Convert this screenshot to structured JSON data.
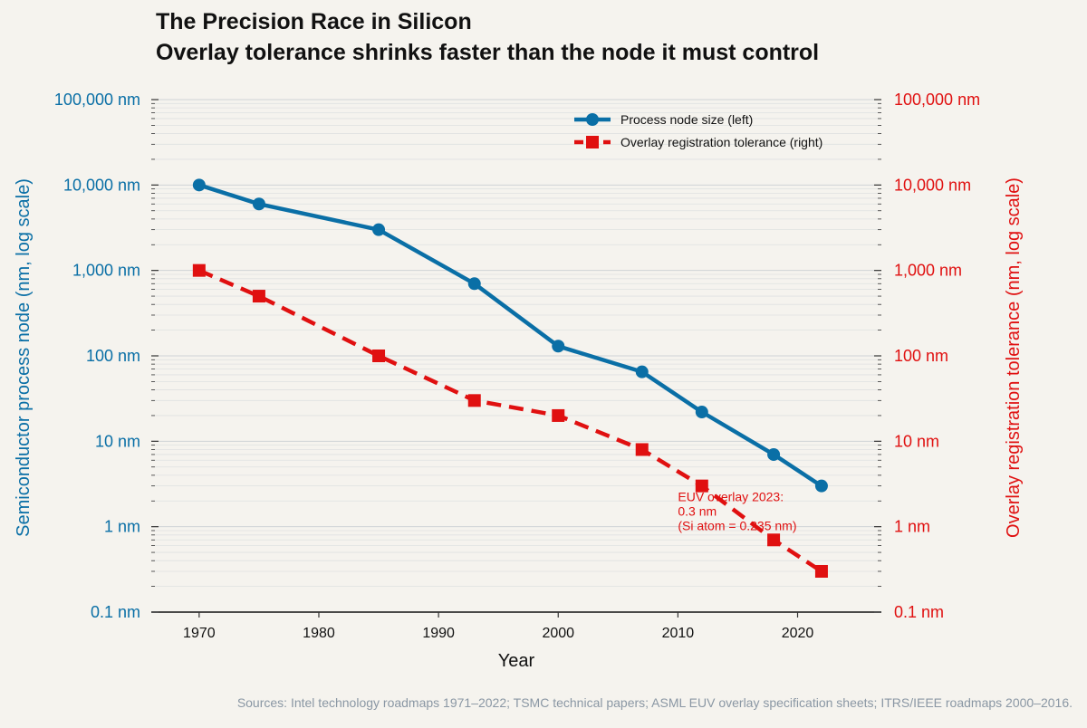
{
  "chart_data": {
    "type": "line",
    "title": "The Precision Race in Silicon",
    "subtitle": "Overlay tolerance shrinks faster than the node it must control",
    "xlabel": "Year",
    "ylabel_left": "Semiconductor process node (nm, log scale)",
    "ylabel_right": "Overlay registration tolerance (nm, log scale)",
    "xlim": [
      1966,
      2027
    ],
    "x_ticks": [
      1970,
      1980,
      1990,
      2000,
      2010,
      2020
    ],
    "ylim": [
      0.1,
      100000
    ],
    "y_scale": "log",
    "y_ticks": [
      {
        "value": 0.1,
        "label": "0.1 nm"
      },
      {
        "value": 1,
        "label": "1 nm"
      },
      {
        "value": 10,
        "label": "10 nm"
      },
      {
        "value": 100,
        "label": "100 nm"
      },
      {
        "value": 1000,
        "label": "1,000 nm"
      },
      {
        "value": 10000,
        "label": "10,000 nm"
      },
      {
        "value": 100000,
        "label": "100,000 nm"
      }
    ],
    "grid": true,
    "legend_position": "top-right",
    "series": [
      {
        "name": "Process node size (left)",
        "axis": "left",
        "color": "#0a6fa6",
        "marker": "circle",
        "line_style": "solid",
        "x": [
          1970,
          1975,
          1985,
          1993,
          2000,
          2007,
          2012,
          2018,
          2022
        ],
        "y": [
          10000,
          6000,
          3000,
          700,
          130,
          65,
          22,
          7,
          3
        ]
      },
      {
        "name": "Overlay registration tolerance (right)",
        "axis": "right",
        "color": "#e01010",
        "marker": "square",
        "line_style": "dashed",
        "x": [
          1970,
          1975,
          1985,
          1993,
          2000,
          2007,
          2012,
          2018,
          2022
        ],
        "y": [
          1000,
          500,
          100,
          30,
          20,
          8,
          3,
          0.7,
          0.3
        ]
      }
    ],
    "annotation": {
      "lines": [
        "EUV overlay 2023:",
        "0.3 nm",
        "(Si atom = 0.235 nm)"
      ],
      "x": 2010,
      "y": 2.0
    }
  },
  "footer": {
    "source": "Sources: Intel technology roadmaps 1971–2022; TSMC technical papers; ASML EUV overlay specification sheets; ITRS/IEEE roadmaps 2000–2016."
  }
}
